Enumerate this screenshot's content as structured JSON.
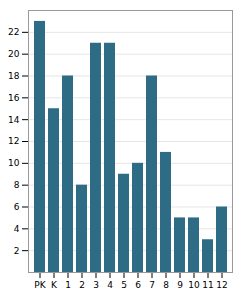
{
  "chart_data": {
    "type": "bar",
    "categories": [
      "PK",
      "K",
      "1",
      "2",
      "3",
      "4",
      "5",
      "6",
      "7",
      "8",
      "9",
      "10",
      "11",
      "12"
    ],
    "values": [
      23,
      15,
      18,
      8,
      21,
      21,
      9,
      10,
      18,
      11,
      5,
      5,
      3,
      6
    ],
    "color": "#2e6b85",
    "ylim": [
      0,
      24
    ],
    "yticks": [
      2,
      4,
      6,
      8,
      10,
      12,
      14,
      16,
      18,
      20,
      22
    ],
    "grid": true
  }
}
